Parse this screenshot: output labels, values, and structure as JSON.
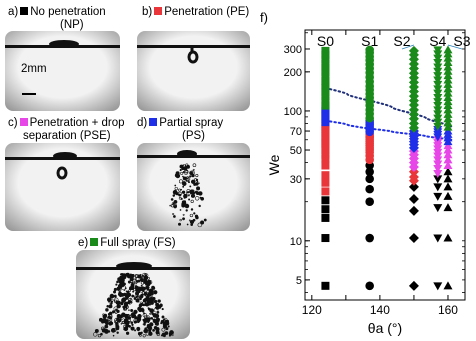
{
  "panels": {
    "a": {
      "letter": "a)",
      "label": "No penetration",
      "label2": "(NP)",
      "color": "#000000"
    },
    "b": {
      "letter": "b)",
      "label": "Penetration (PE)",
      "color": "#e8363a"
    },
    "c": {
      "letter": "c)",
      "label": "Penetration + drop",
      "label2": "separation (PSE)",
      "color": "#e847e8"
    },
    "d": {
      "letter": "d)",
      "label": "Partial spray",
      "label2": "(PS)",
      "color": "#1f2fe8"
    },
    "e": {
      "letter": "e)",
      "label": "Full spray (FS)",
      "color": "#1a8a1a"
    },
    "scale_bar": "2mm"
  },
  "chart_data": {
    "type": "scatter",
    "panel_label": "f)",
    "xlabel": "θa (°)",
    "ylabel": "We",
    "xlim": [
      118,
      165
    ],
    "ylim": [
      3.5,
      420
    ],
    "y_scale": "log",
    "x_ticks": [
      120,
      130,
      140,
      150,
      160
    ],
    "x_tick_labels": [
      "120",
      "",
      "140",
      "",
      "160"
    ],
    "y_ticks": [
      5,
      10,
      30,
      50,
      70,
      100,
      200,
      300
    ],
    "y_tick_labels": [
      "5",
      "10",
      "30",
      "50",
      "70",
      "100",
      "200",
      "300"
    ],
    "surface_labels": [
      {
        "text": "S0",
        "x": 124
      },
      {
        "text": "S1",
        "x": 137
      },
      {
        "text": "S2",
        "x": 150
      },
      {
        "text": "S4",
        "x": 157
      },
      {
        "text": "S3",
        "x": 160
      }
    ],
    "colors": {
      "NP": "#000000",
      "PE": "#e8363a",
      "PSE": "#e847e8",
      "PS": "#1f2fe8",
      "FS": "#1a8a1a"
    },
    "columns": [
      {
        "x": 124,
        "marker": "square",
        "NP": [
          4.5,
          10.5,
          15,
          17.5,
          20.5
        ],
        "PE": [
          24,
          28,
          32,
          38,
          43,
          46,
          50,
          53,
          56,
          58,
          61,
          64,
          67,
          70,
          73,
          76,
          79
        ],
        "PS": [
          82,
          87,
          91,
          95,
          100,
          104
        ],
        "FS": [
          110,
          120,
          130,
          140,
          150,
          160,
          170,
          185,
          200,
          215,
          230,
          250,
          270,
          290
        ]
      },
      {
        "x": 137,
        "marker": "circle",
        "NP": [
          4.5,
          10.5,
          20,
          25,
          30,
          34,
          38
        ],
        "PE": [
          42,
          45,
          48,
          50,
          52,
          54,
          56,
          58,
          60,
          62,
          64,
          66
        ],
        "PS": [
          69,
          72,
          75,
          78,
          81,
          84
        ],
        "FS": [
          88,
          95,
          102,
          110,
          118,
          126,
          135,
          145,
          155,
          168,
          182,
          197,
          212,
          228,
          245,
          262,
          280,
          295
        ]
      },
      {
        "x": 150,
        "marker": "diamond",
        "NP": [
          4.5,
          10.5,
          17,
          21,
          26
        ],
        "PE": [
          29,
          31,
          34
        ],
        "PSE": [
          37,
          40,
          43,
          46,
          49
        ],
        "PS": [
          52,
          55,
          58,
          61,
          64,
          67,
          70
        ],
        "FS": [
          74,
          80,
          87,
          94,
          102,
          111,
          120,
          130,
          141,
          153,
          166,
          180,
          195,
          212,
          230,
          250,
          270,
          290
        ]
      },
      {
        "x": 157,
        "marker": "triangle-down",
        "NP": [
          4.5,
          10.5,
          18,
          22,
          26,
          30
        ],
        "PSE": [
          33,
          36,
          39,
          42,
          45,
          48,
          51,
          54,
          57,
          60
        ],
        "PS": [
          63,
          66,
          69,
          72
        ],
        "FS": [
          76,
          82,
          88,
          95,
          102,
          110,
          118,
          127,
          137,
          148,
          160,
          173,
          187,
          202,
          218,
          236,
          255,
          275,
          295
        ]
      },
      {
        "x": 160,
        "marker": "triangle-up",
        "NP": [
          4.5,
          10.5,
          18,
          22,
          26,
          30,
          34
        ],
        "PSE": [
          38,
          42,
          46,
          50,
          54
        ],
        "PS": [
          58,
          62,
          66,
          70
        ],
        "FS": [
          75,
          81,
          87,
          94,
          102,
          110,
          118,
          127,
          137,
          148,
          160,
          173,
          187,
          202,
          218,
          236,
          255,
          275,
          295
        ]
      }
    ],
    "threshold_lines": [
      {
        "color": "#1f2f7a",
        "points": [
          [
            124,
            150
          ],
          [
            137,
            120
          ],
          [
            150,
            95
          ],
          [
            157,
            82
          ],
          [
            161,
            76
          ]
        ]
      },
      {
        "color": "#1f2fe8",
        "points": [
          [
            124,
            84
          ],
          [
            137,
            73
          ],
          [
            150,
            66
          ],
          [
            157,
            62
          ],
          [
            161,
            60
          ]
        ]
      }
    ]
  }
}
